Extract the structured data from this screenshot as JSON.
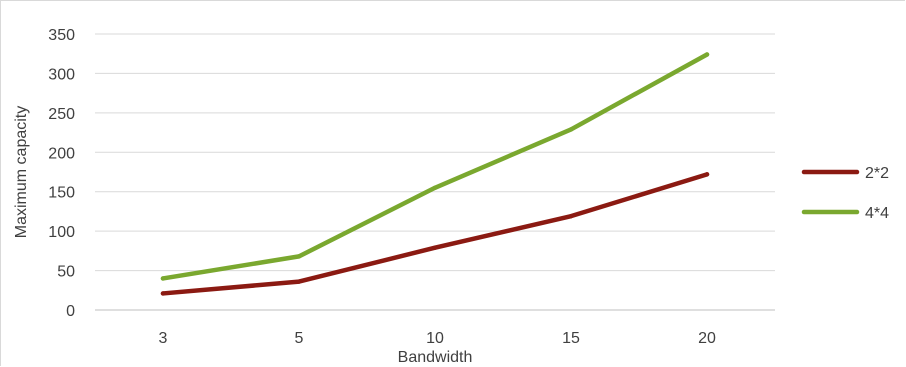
{
  "chart_data": {
    "type": "line",
    "categories": [
      "3",
      "5",
      "10",
      "15",
      "20"
    ],
    "series": [
      {
        "name": "2*2",
        "values": [
          21,
          36,
          79,
          119,
          172
        ],
        "color": "#8b1a12"
      },
      {
        "name": "4*4",
        "values": [
          40,
          68,
          155,
          229,
          324
        ],
        "color": "#7aa82f"
      }
    ],
    "xlabel": "Bandwidth",
    "ylabel": "Maximum capacity",
    "ylim": [
      0,
      350
    ],
    "yticks": [
      "0",
      "50",
      "100",
      "150",
      "200",
      "250",
      "300",
      "350"
    ],
    "grid": true,
    "legend_position": "right"
  }
}
